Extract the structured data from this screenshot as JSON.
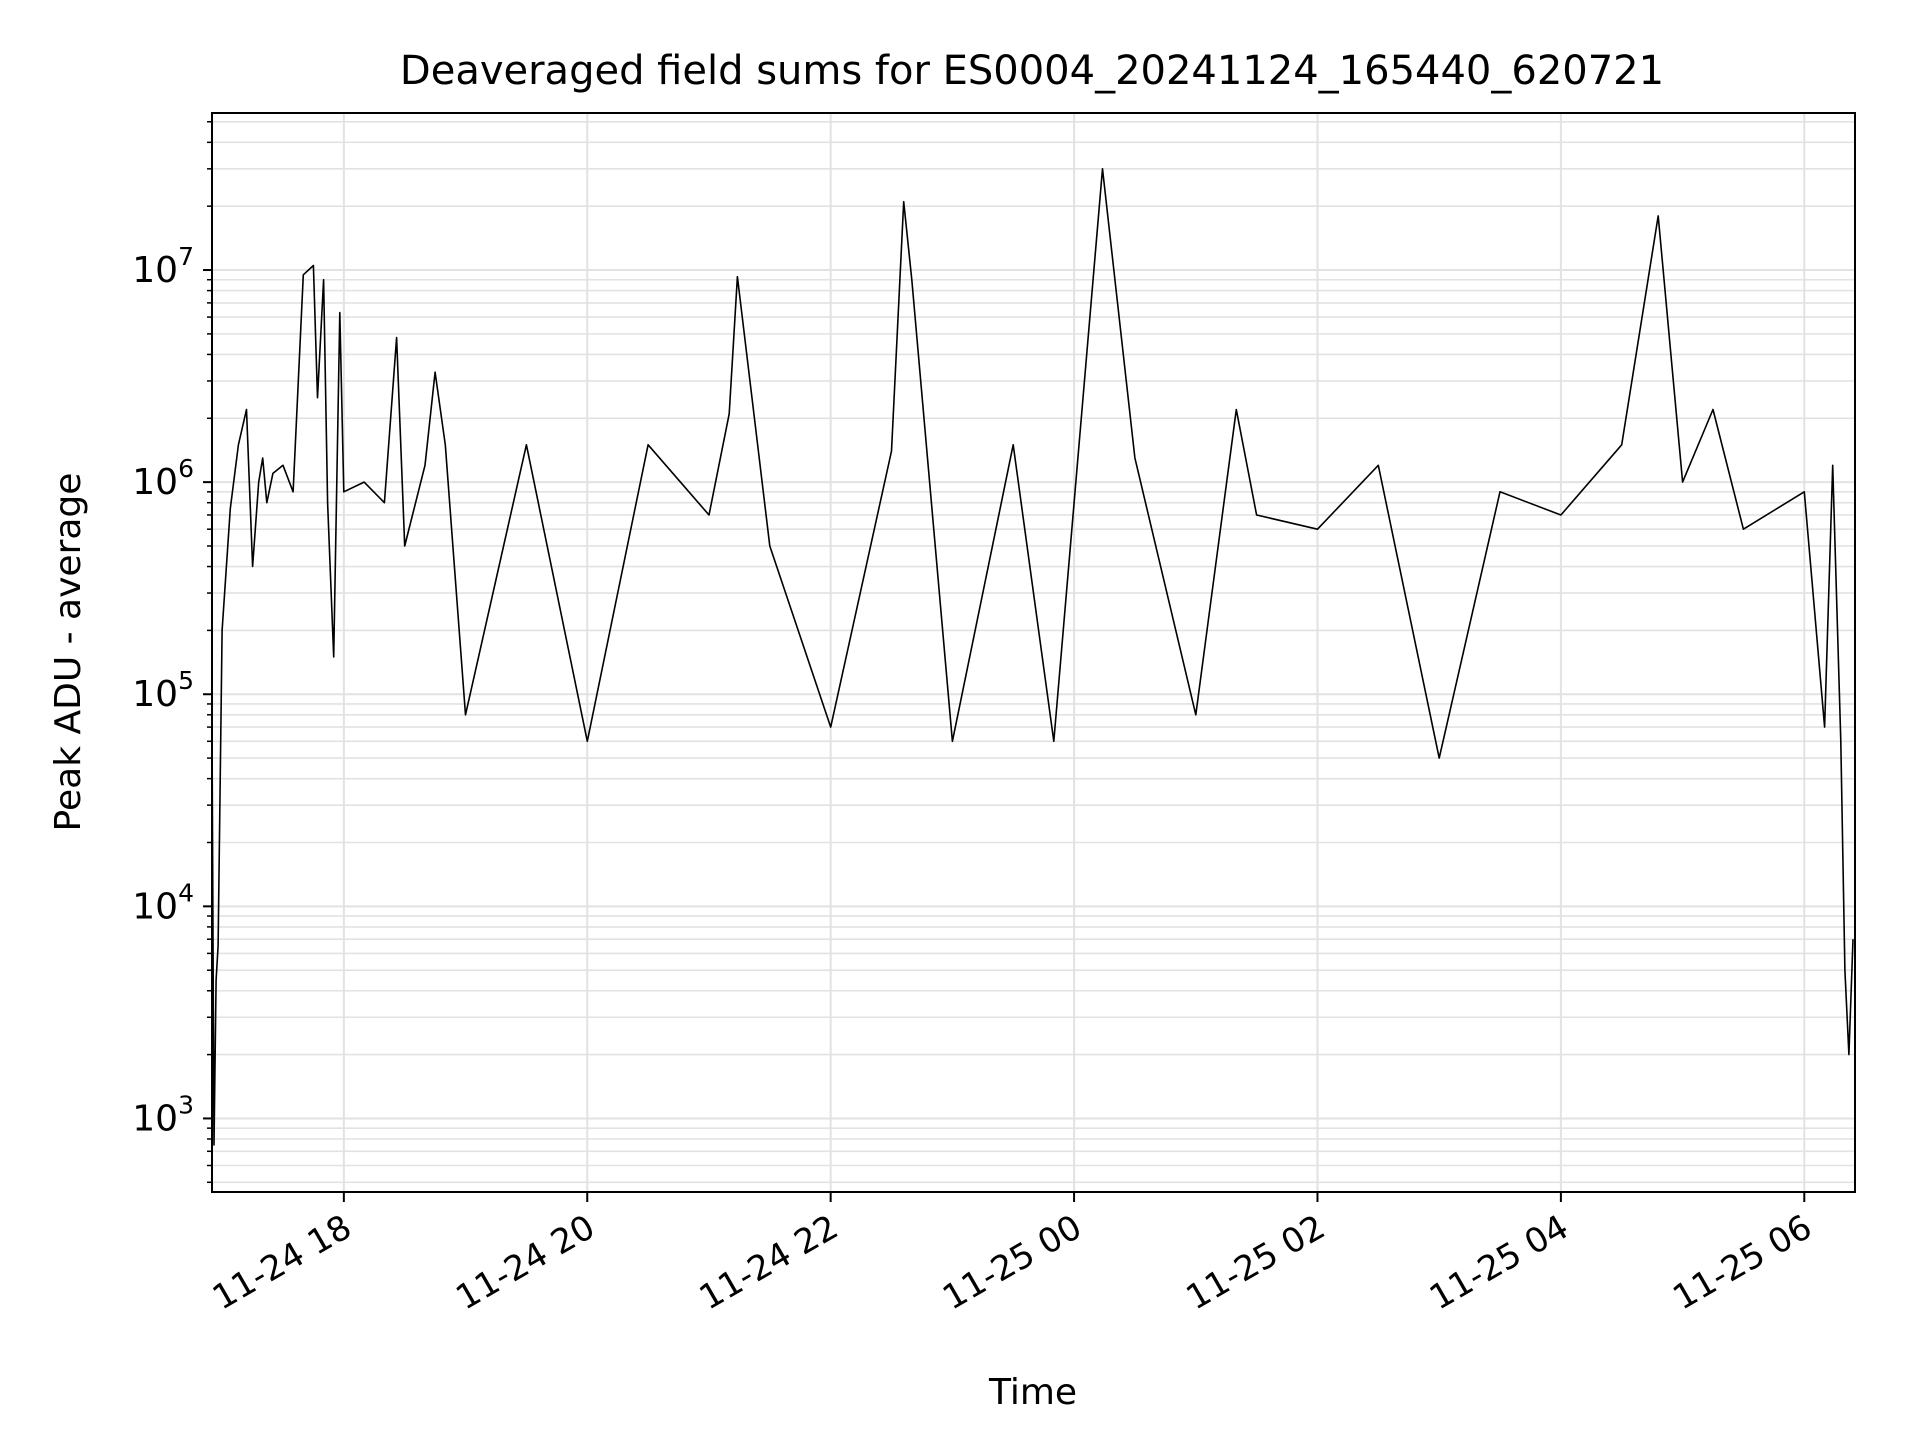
{
  "chart_data": {
    "type": "line",
    "title": "Deaveraged field sums for ES0004_20241124_165440_620721",
    "xlabel": "Time",
    "ylabel": "Peak ADU - average",
    "yscale": "log",
    "ylim": [
      450,
      55000000
    ],
    "xlim": [
      "2024-11-24 16:55",
      "2024-11-25 06:25"
    ],
    "grid": {
      "major": true,
      "minor": true
    },
    "line_color": "#000000",
    "x_ticks": [
      {
        "value": "2024-11-24 18:00",
        "label": "11-24 18"
      },
      {
        "value": "2024-11-24 20:00",
        "label": "11-24 20"
      },
      {
        "value": "2024-11-24 22:00",
        "label": "11-24 22"
      },
      {
        "value": "2024-11-25 00:00",
        "label": "11-25 00"
      },
      {
        "value": "2024-11-25 02:00",
        "label": "11-25 02"
      },
      {
        "value": "2024-11-25 04:00",
        "label": "11-25 04"
      },
      {
        "value": "2024-11-25 06:00",
        "label": "11-25 06"
      }
    ],
    "y_ticks": [
      {
        "value": 1000,
        "base": "10",
        "exp": "3"
      },
      {
        "value": 10000,
        "base": "10",
        "exp": "4"
      },
      {
        "value": 100000,
        "base": "10",
        "exp": "5"
      },
      {
        "value": 1000000,
        "base": "10",
        "exp": "6"
      },
      {
        "value": 10000000,
        "base": "10",
        "exp": "7"
      }
    ],
    "series": [
      {
        "x": [
          "2024-11-24 16:55",
          "2024-11-24 16:56",
          "2024-11-24 16:57",
          "2024-11-24 16:58",
          "2024-11-24 17:00",
          "2024-11-24 17:04",
          "2024-11-24 17:08",
          "2024-11-24 17:12",
          "2024-11-24 17:15",
          "2024-11-24 17:18",
          "2024-11-24 17:20",
          "2024-11-24 17:22",
          "2024-11-24 17:25",
          "2024-11-24 17:30",
          "2024-11-24 17:35",
          "2024-11-24 17:40",
          "2024-11-24 17:45",
          "2024-11-24 17:47",
          "2024-11-24 17:50",
          "2024-11-24 17:52",
          "2024-11-24 17:55",
          "2024-11-24 17:58",
          "2024-11-24 18:00",
          "2024-11-24 18:10",
          "2024-11-24 18:20",
          "2024-11-24 18:26",
          "2024-11-24 18:30",
          "2024-11-24 18:40",
          "2024-11-24 18:45",
          "2024-11-24 18:50",
          "2024-11-24 19:00",
          "2024-11-24 19:30",
          "2024-11-24 20:00",
          "2024-11-24 20:30",
          "2024-11-24 21:00",
          "2024-11-24 21:10",
          "2024-11-24 21:14",
          "2024-11-24 21:30",
          "2024-11-24 22:00",
          "2024-11-24 22:30",
          "2024-11-24 22:36",
          "2024-11-24 22:40",
          "2024-11-24 23:00",
          "2024-11-24 23:30",
          "2024-11-24 23:50",
          "2024-11-25 00:14",
          "2024-11-25 00:30",
          "2024-11-25 01:00",
          "2024-11-25 01:20",
          "2024-11-25 01:30",
          "2024-11-25 02:00",
          "2024-11-25 02:30",
          "2024-11-25 03:00",
          "2024-11-25 03:30",
          "2024-11-25 04:00",
          "2024-11-25 04:30",
          "2024-11-25 04:48",
          "2024-11-25 05:00",
          "2024-11-25 05:15",
          "2024-11-25 05:30",
          "2024-11-25 06:00",
          "2024-11-25 06:10",
          "2024-11-25 06:14",
          "2024-11-25 06:18",
          "2024-11-25 06:20",
          "2024-11-25 06:22",
          "2024-11-25 06:24"
        ],
        "y": [
          70000,
          750,
          4500,
          6500,
          200000,
          750000,
          1500000,
          2200000,
          400000,
          1000000,
          1300000,
          800000,
          1100000,
          1200000,
          900000,
          9500000,
          10500000,
          2500000,
          9000000,
          800000,
          150000,
          6300000,
          900000,
          1000000,
          800000,
          4800000,
          500000,
          1200000,
          3300000,
          1500000,
          80000,
          1500000,
          60000,
          1500000,
          700000,
          2100000,
          9300000,
          500000,
          70000,
          1400000,
          21000000,
          9000000,
          60000,
          1500000,
          60000,
          30000000,
          1300000,
          80000,
          2200000,
          700000,
          600000,
          1200000,
          50000,
          900000,
          700000,
          1500000,
          18000000,
          1000000,
          2200000,
          600000,
          900000,
          70000,
          1200000,
          60000,
          5000,
          2000,
          7000
        ]
      }
    ]
  }
}
